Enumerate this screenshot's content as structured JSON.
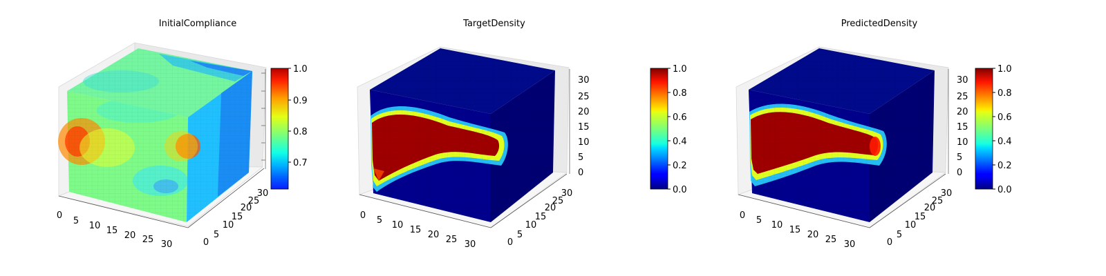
{
  "chart_data": [
    {
      "type": "heatmap",
      "subtype": "3d-voxel",
      "title": "InitialCompliance",
      "x_ticks": [
        "0",
        "5",
        "10",
        "15",
        "20",
        "25",
        "30"
      ],
      "y_ticks": [
        "0",
        "5",
        "10",
        "15",
        "20",
        "25",
        "30"
      ],
      "z_ticks": [],
      "xlim": [
        0,
        32
      ],
      "ylim": [
        0,
        32
      ],
      "zlim": [
        0,
        32
      ],
      "colormap": "jet",
      "colorbar": {
        "vmin": 0.62,
        "vmax": 1.0,
        "ticks": [
          "0.7",
          "0.8",
          "0.9",
          "1.0"
        ],
        "tick_values": [
          0.7,
          0.8,
          0.9,
          1.0
        ]
      },
      "front_face": {
        "base": 0.83,
        "hotspots": [
          {
            "u": 0.06,
            "v": 0.52,
            "value": 0.95
          },
          {
            "u": 0.98,
            "v": 0.52,
            "value": 0.9
          }
        ],
        "cool": [
          {
            "u": 0.75,
            "v": 0.12,
            "value": 0.76
          }
        ]
      },
      "top_face": {
        "base": 0.78,
        "far_edge_value": 0.68
      },
      "right_face": {
        "near_value": 0.74,
        "far_value": 0.66,
        "hotspot": {
          "u": 0.05,
          "v": 0.52,
          "value": 0.95
        }
      }
    },
    {
      "type": "heatmap",
      "subtype": "3d-voxel",
      "title": "TargetDensity",
      "x_ticks": [
        "0",
        "5",
        "10",
        "15",
        "20",
        "25",
        "30"
      ],
      "y_ticks": [
        "0",
        "5",
        "10",
        "15",
        "20",
        "25",
        "30"
      ],
      "z_ticks": [
        "0",
        "5",
        "10",
        "15",
        "20",
        "25",
        "30"
      ],
      "xlim": [
        0,
        32
      ],
      "ylim": [
        0,
        32
      ],
      "zlim": [
        0,
        32
      ],
      "colormap": "jet",
      "colorbar": {
        "vmin": 0.0,
        "vmax": 1.0,
        "ticks": [
          "0.0",
          "0.2",
          "0.4",
          "0.6",
          "0.8",
          "1.0"
        ],
        "tick_values": [
          0,
          0.2,
          0.4,
          0.6,
          0.8,
          1.0
        ]
      },
      "background_value": 0.05,
      "structure_value": 1.0
    },
    {
      "type": "heatmap",
      "subtype": "3d-voxel",
      "title": "PredictedDensity",
      "x_ticks": [
        "0",
        "5",
        "10",
        "15",
        "20",
        "25",
        "30"
      ],
      "y_ticks": [
        "0",
        "5",
        "10",
        "15",
        "20",
        "25",
        "30"
      ],
      "z_ticks": [
        "0",
        "5",
        "10",
        "15",
        "20",
        "25",
        "30"
      ],
      "xlim": [
        0,
        32
      ],
      "ylim": [
        0,
        32
      ],
      "zlim": [
        0,
        32
      ],
      "colormap": "jet",
      "colorbar": {
        "vmin": 0.0,
        "vmax": 1.0,
        "ticks": [
          "0.0",
          "0.2",
          "0.4",
          "0.6",
          "0.8",
          "1.0"
        ],
        "tick_values": [
          0,
          0.2,
          0.4,
          0.6,
          0.8,
          1.0
        ]
      },
      "background_value": 0.05,
      "structure_value": 1.0
    }
  ]
}
